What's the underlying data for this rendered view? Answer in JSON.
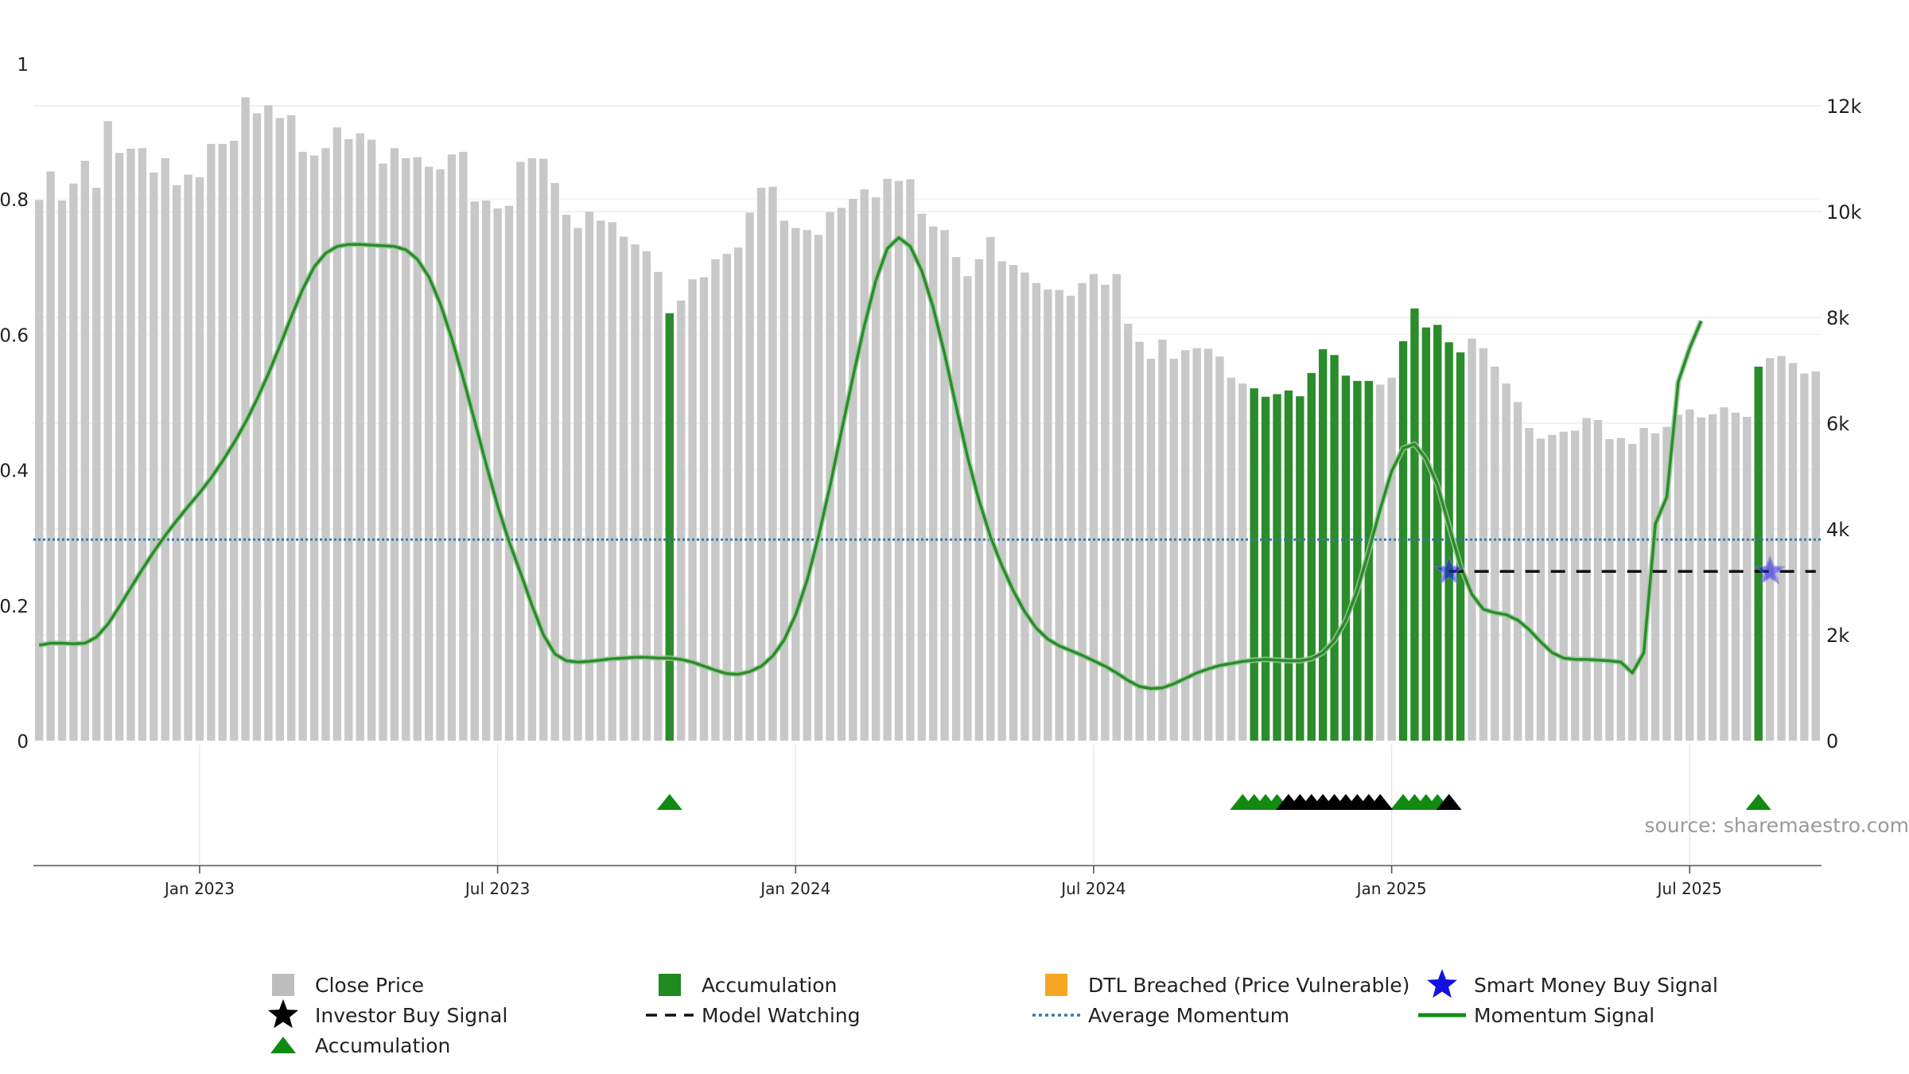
{
  "chart_data": {
    "type": "bar",
    "title": "",
    "source_label": "source: sharemaestro.com",
    "x_ticks": [
      "Jan 2023",
      "Jul 2023",
      "Jan 2024",
      "Jul 2024",
      "Jan 2025",
      "Jul 2025"
    ],
    "x_tick_positions": [
      14.5,
      40.5,
      66.5,
      92.5,
      118.5,
      144.5
    ],
    "left_axis": {
      "ticks": [
        "0",
        "0.2",
        "0.4",
        "0.6",
        "0.8",
        "1"
      ],
      "range": [
        0,
        1
      ]
    },
    "right_axis": {
      "ticks": [
        "0",
        "2k",
        "4k",
        "6k",
        "8k",
        "10k",
        "12k"
      ],
      "range": [
        0,
        13000
      ]
    },
    "close_price": [
      10220,
      10760,
      10210,
      10530,
      10960,
      10450,
      11710,
      11110,
      11190,
      11200,
      10740,
      11010,
      10500,
      10700,
      10650,
      11280,
      11280,
      11340,
      12160,
      11860,
      12010,
      11770,
      11820,
      11130,
      11060,
      11200,
      11590,
      11370,
      11480,
      11360,
      10910,
      11200,
      11010,
      11030,
      10850,
      10800,
      11080,
      11130,
      10190,
      10210,
      10060,
      10110,
      10940,
      11010,
      11000,
      10540,
      9940,
      9690,
      10000,
      9830,
      9800,
      9530,
      9380,
      9250,
      8860,
      8080,
      8320,
      8720,
      8760,
      9100,
      9200,
      9320,
      9980,
      10450,
      10470,
      9830,
      9690,
      9650,
      9560,
      9990,
      10070,
      10240,
      10420,
      10270,
      10620,
      10580,
      10610,
      9960,
      9720,
      9650,
      9140,
      8780,
      9100,
      9520,
      9060,
      8990,
      8850,
      8650,
      8530,
      8520,
      8410,
      8650,
      8820,
      8620,
      8820,
      7880,
      7540,
      7220,
      7580,
      7220,
      7380,
      7420,
      7410,
      7260,
      6860,
      6750,
      6660,
      6500,
      6550,
      6620,
      6510,
      6950,
      7400,
      7290,
      6900,
      6800,
      6800,
      6730,
      6860,
      7550,
      8170,
      7810,
      7860,
      7530,
      7340,
      7600,
      7420,
      7070,
      6750,
      6400,
      5910,
      5710,
      5780,
      5840,
      5860,
      6100,
      6060,
      5700,
      5720,
      5610,
      5910,
      5810,
      5930,
      6160,
      6260,
      6110,
      6170,
      6300,
      6200,
      6120,
      7070,
      7230,
      7270,
      7140,
      6940,
      6980
    ],
    "accumulation_bars": [
      55,
      106,
      107,
      108,
      109,
      110,
      111,
      112,
      113,
      114,
      115,
      116,
      119,
      120,
      121,
      122,
      123,
      124,
      150
    ],
    "accumulation_triangles": [
      55,
      105,
      106,
      107,
      108,
      119,
      120,
      121,
      122,
      150
    ],
    "investor_buy_triangles": [
      109,
      110,
      111,
      112,
      113,
      114,
      115,
      116,
      117,
      123
    ],
    "smart_money_stars": [
      {
        "x": 123.5,
        "y": 0.25
      },
      {
        "x": 151.5,
        "y": 0.25
      }
    ],
    "model_watching": {
      "x_start": 123.5,
      "x_end": 155.5,
      "y": 0.25
    },
    "average_momentum": 0.297,
    "momentum_signal": [
      [
        0,
        0.141
      ],
      [
        1,
        0.144
      ],
      [
        2,
        0.144
      ],
      [
        3,
        0.143
      ],
      [
        4,
        0.144
      ],
      [
        5,
        0.153
      ],
      [
        6,
        0.172
      ],
      [
        7,
        0.198
      ],
      [
        8,
        0.226
      ],
      [
        9,
        0.253
      ],
      [
        10,
        0.279
      ],
      [
        11,
        0.303
      ],
      [
        12,
        0.325
      ],
      [
        13,
        0.346
      ],
      [
        14,
        0.366
      ],
      [
        15,
        0.388
      ],
      [
        16,
        0.413
      ],
      [
        17,
        0.44
      ],
      [
        18,
        0.47
      ],
      [
        19,
        0.504
      ],
      [
        20,
        0.542
      ],
      [
        21,
        0.583
      ],
      [
        22,
        0.626
      ],
      [
        23,
        0.667
      ],
      [
        24,
        0.7
      ],
      [
        25,
        0.72
      ],
      [
        26,
        0.73
      ],
      [
        27,
        0.733
      ],
      [
        28,
        0.733
      ],
      [
        29,
        0.732
      ],
      [
        30,
        0.731
      ],
      [
        31,
        0.73
      ],
      [
        32,
        0.725
      ],
      [
        33,
        0.711
      ],
      [
        34,
        0.685
      ],
      [
        35,
        0.645
      ],
      [
        36,
        0.594
      ],
      [
        37,
        0.535
      ],
      [
        38,
        0.472
      ],
      [
        39,
        0.408
      ],
      [
        40,
        0.347
      ],
      [
        41,
        0.294
      ],
      [
        42,
        0.248
      ],
      [
        43,
        0.2
      ],
      [
        44,
        0.156
      ],
      [
        45,
        0.128
      ],
      [
        46,
        0.118
      ],
      [
        47,
        0.116
      ],
      [
        48,
        0.117
      ],
      [
        49,
        0.119
      ],
      [
        50,
        0.121
      ],
      [
        51,
        0.122
      ],
      [
        52,
        0.123
      ],
      [
        53,
        0.123
      ],
      [
        54,
        0.122
      ],
      [
        55,
        0.122
      ],
      [
        56,
        0.12
      ],
      [
        57,
        0.116
      ],
      [
        58,
        0.11
      ],
      [
        59,
        0.104
      ],
      [
        60,
        0.099
      ],
      [
        61,
        0.098
      ],
      [
        62,
        0.102
      ],
      [
        63,
        0.11
      ],
      [
        64,
        0.125
      ],
      [
        65,
        0.149
      ],
      [
        66,
        0.186
      ],
      [
        67,
        0.237
      ],
      [
        68,
        0.302
      ],
      [
        69,
        0.376
      ],
      [
        70,
        0.457
      ],
      [
        71,
        0.537
      ],
      [
        72,
        0.613
      ],
      [
        73,
        0.68
      ],
      [
        74,
        0.727
      ],
      [
        75,
        0.743
      ],
      [
        76,
        0.73
      ],
      [
        77,
        0.694
      ],
      [
        78,
        0.64
      ],
      [
        79,
        0.571
      ],
      [
        80,
        0.494
      ],
      [
        81,
        0.419
      ],
      [
        82,
        0.355
      ],
      [
        83,
        0.301
      ],
      [
        84,
        0.258
      ],
      [
        85,
        0.221
      ],
      [
        86,
        0.19
      ],
      [
        87,
        0.166
      ],
      [
        88,
        0.15
      ],
      [
        89,
        0.14
      ],
      [
        90,
        0.133
      ],
      [
        91,
        0.126
      ],
      [
        92,
        0.118
      ],
      [
        93,
        0.11
      ],
      [
        94,
        0.1
      ],
      [
        95,
        0.089
      ],
      [
        96,
        0.08
      ],
      [
        97,
        0.077
      ],
      [
        98,
        0.078
      ],
      [
        99,
        0.084
      ],
      [
        100,
        0.092
      ],
      [
        101,
        0.1
      ],
      [
        102,
        0.106
      ],
      [
        103,
        0.111
      ],
      [
        104,
        0.114
      ],
      [
        105,
        0.117
      ],
      [
        106,
        0.119
      ],
      [
        107,
        0.12
      ],
      [
        108,
        0.119
      ],
      [
        109,
        0.118
      ],
      [
        110,
        0.118
      ],
      [
        111,
        0.121
      ],
      [
        112,
        0.13
      ],
      [
        113,
        0.148
      ],
      [
        114,
        0.178
      ],
      [
        115,
        0.222
      ],
      [
        116,
        0.28
      ],
      [
        117,
        0.342
      ],
      [
        118,
        0.398
      ],
      [
        119,
        0.432
      ],
      [
        120,
        0.438
      ],
      [
        121,
        0.416
      ],
      [
        122,
        0.377
      ],
      [
        123,
        0.317
      ],
      [
        124,
        0.258
      ],
      [
        125,
        0.216
      ],
      [
        126,
        0.194
      ],
      [
        127,
        0.189
      ],
      [
        128,
        0.186
      ],
      [
        129,
        0.178
      ],
      [
        130,
        0.164
      ],
      [
        131,
        0.146
      ],
      [
        132,
        0.13
      ],
      [
        133,
        0.122
      ],
      [
        134,
        0.12
      ],
      [
        135,
        0.12
      ],
      [
        136,
        0.119
      ],
      [
        137,
        0.118
      ],
      [
        138,
        0.116
      ],
      [
        139,
        0.1
      ],
      [
        140,
        0.13
      ],
      [
        141,
        0.32
      ],
      [
        142,
        0.36
      ],
      [
        143,
        0.53
      ],
      [
        144,
        0.58
      ],
      [
        145,
        0.62
      ]
    ],
    "legend": [
      {
        "label": "Close Price",
        "symbol": "square-grey"
      },
      {
        "label": "Accumulation",
        "symbol": "square-green"
      },
      {
        "label": "DTL Breached (Price Vulnerable)",
        "symbol": "square-orange"
      },
      {
        "label": "Smart Money Buy Signal",
        "symbol": "star-blue"
      },
      {
        "label": "Investor Buy Signal",
        "symbol": "star-black"
      },
      {
        "label": "Model Watching",
        "symbol": "dash-black"
      },
      {
        "label": "Average Momentum",
        "symbol": "dot-blue"
      },
      {
        "label": "Momentum Signal",
        "symbol": "line-green"
      },
      {
        "label": "Accumulation",
        "symbol": "triangle-green"
      }
    ],
    "colors": {
      "close_price": "#c8c8c8",
      "accumulation": "#2a8c2a",
      "dtl": "#f6a623",
      "smart_money": "#1a1ae6",
      "investor": "#000000",
      "momentum": "#2a8c2a",
      "avg_momentum": "#3a78a8"
    }
  }
}
